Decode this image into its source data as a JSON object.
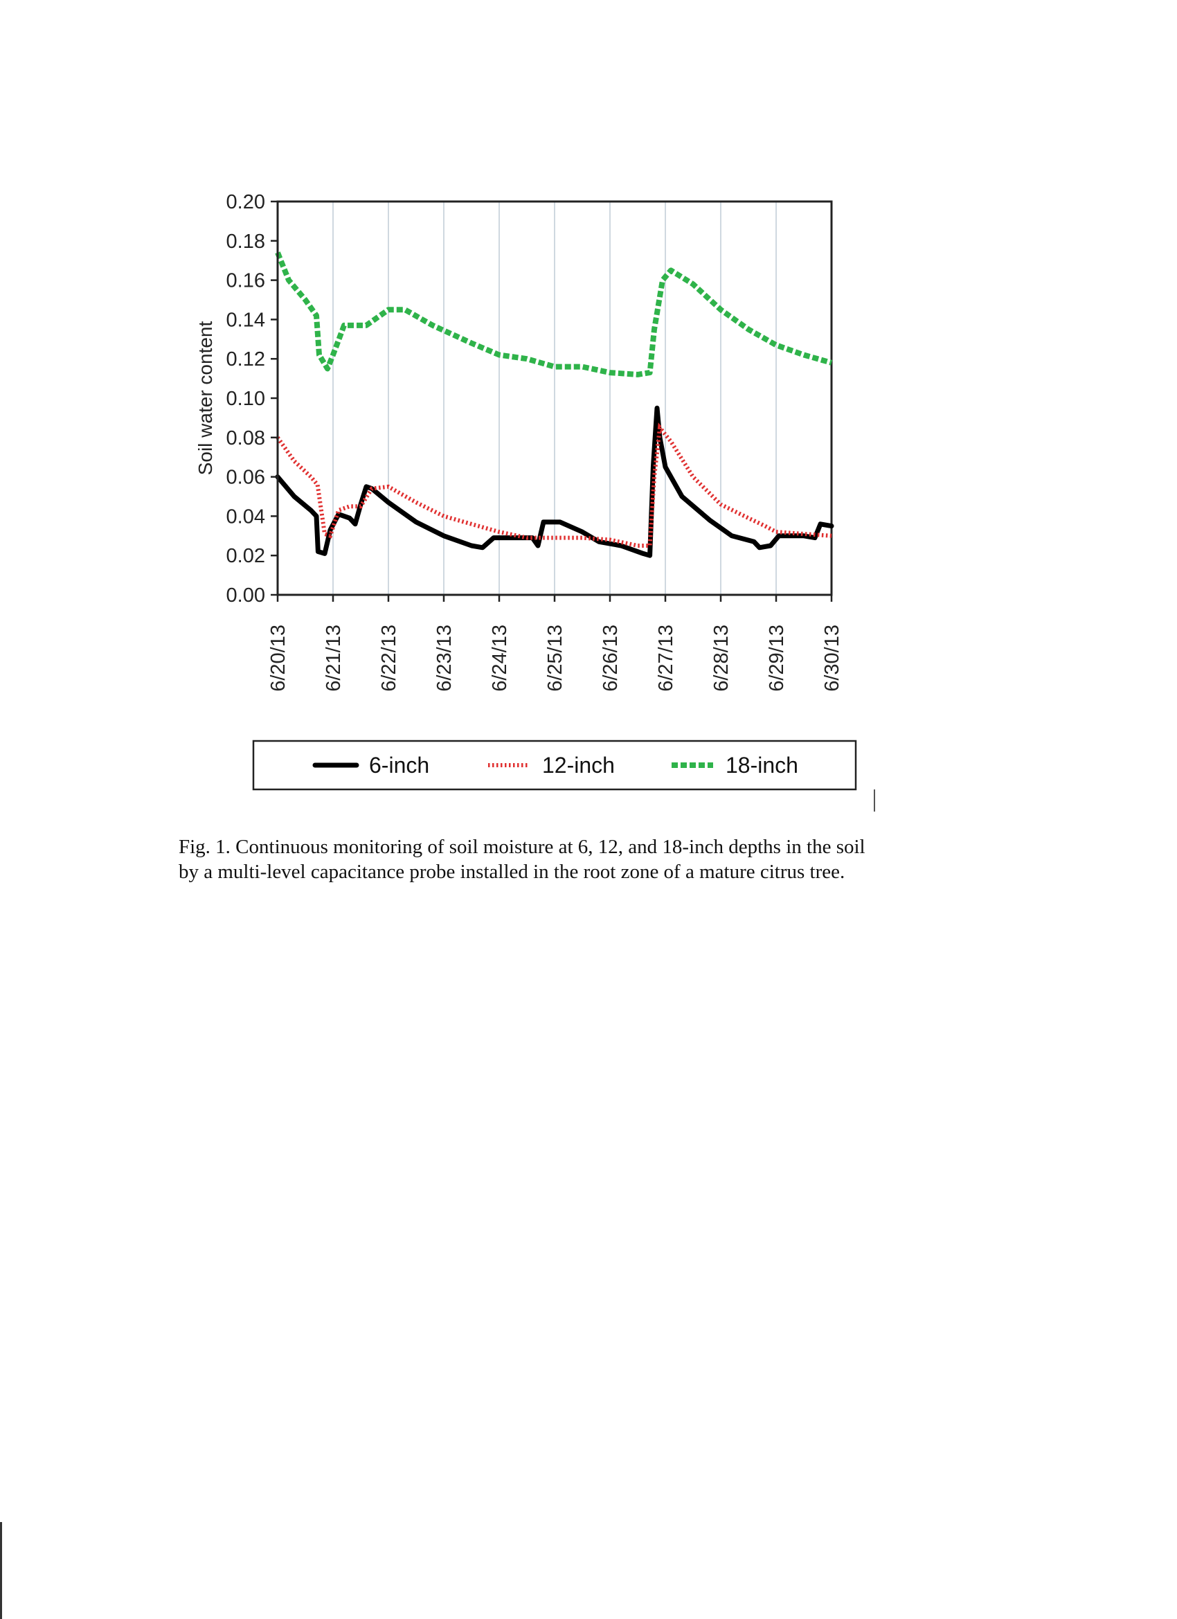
{
  "chart_data": {
    "type": "line",
    "title": "",
    "xlabel": "",
    "ylabel": "Soil water content",
    "ylim": [
      0,
      0.2
    ],
    "yticks": [
      "0.00",
      "0.02",
      "0.04",
      "0.06",
      "0.08",
      "0.10",
      "0.12",
      "0.14",
      "0.16",
      "0.18",
      "0.20"
    ],
    "xlim": [
      0,
      10
    ],
    "x_tick_labels": [
      "6/20/13",
      "6/21/13",
      "6/22/13",
      "6/23/13",
      "6/24/13",
      "6/25/13",
      "6/26/13",
      "6/27/13",
      "6/28/13",
      "6/29/13",
      "6/30/13"
    ],
    "vertical_grid": true,
    "legend_position": "bottom",
    "series": [
      {
        "name": "6-inch",
        "color": "#000000",
        "style": "solid",
        "points": [
          [
            0,
            0.06
          ],
          [
            0.3,
            0.05
          ],
          [
            0.6,
            0.043
          ],
          [
            0.7,
            0.04
          ],
          [
            0.73,
            0.022
          ],
          [
            0.85,
            0.021
          ],
          [
            0.95,
            0.033
          ],
          [
            1.1,
            0.041
          ],
          [
            1.3,
            0.039
          ],
          [
            1.4,
            0.036
          ],
          [
            1.5,
            0.046
          ],
          [
            1.6,
            0.055
          ],
          [
            1.7,
            0.054
          ],
          [
            2.0,
            0.047
          ],
          [
            2.5,
            0.037
          ],
          [
            3.0,
            0.03
          ],
          [
            3.5,
            0.025
          ],
          [
            3.7,
            0.024
          ],
          [
            3.9,
            0.029
          ],
          [
            4.3,
            0.029
          ],
          [
            4.6,
            0.029
          ],
          [
            4.7,
            0.025
          ],
          [
            4.8,
            0.037
          ],
          [
            5.1,
            0.037
          ],
          [
            5.5,
            0.032
          ],
          [
            5.8,
            0.027
          ],
          [
            6.2,
            0.025
          ],
          [
            6.6,
            0.021
          ],
          [
            6.72,
            0.02
          ],
          [
            6.78,
            0.065
          ],
          [
            6.85,
            0.095
          ],
          [
            6.9,
            0.08
          ],
          [
            7.0,
            0.065
          ],
          [
            7.3,
            0.05
          ],
          [
            7.8,
            0.038
          ],
          [
            8.2,
            0.03
          ],
          [
            8.6,
            0.027
          ],
          [
            8.7,
            0.024
          ],
          [
            8.9,
            0.025
          ],
          [
            9.05,
            0.03
          ],
          [
            9.5,
            0.03
          ],
          [
            9.7,
            0.029
          ],
          [
            9.8,
            0.036
          ],
          [
            10.0,
            0.035
          ]
        ]
      },
      {
        "name": "12-inch",
        "color": "#e03030",
        "style": "dotted",
        "points": [
          [
            0,
            0.08
          ],
          [
            0.3,
            0.068
          ],
          [
            0.6,
            0.06
          ],
          [
            0.72,
            0.056
          ],
          [
            0.85,
            0.031
          ],
          [
            0.95,
            0.03
          ],
          [
            1.1,
            0.043
          ],
          [
            1.3,
            0.045
          ],
          [
            1.5,
            0.045
          ],
          [
            1.7,
            0.054
          ],
          [
            2.0,
            0.055
          ],
          [
            2.5,
            0.047
          ],
          [
            3.0,
            0.04
          ],
          [
            3.5,
            0.036
          ],
          [
            4.0,
            0.032
          ],
          [
            4.5,
            0.029
          ],
          [
            5.0,
            0.029
          ],
          [
            5.5,
            0.029
          ],
          [
            6.0,
            0.028
          ],
          [
            6.5,
            0.025
          ],
          [
            6.72,
            0.025
          ],
          [
            6.8,
            0.06
          ],
          [
            6.9,
            0.085
          ],
          [
            7.1,
            0.078
          ],
          [
            7.5,
            0.06
          ],
          [
            8.0,
            0.046
          ],
          [
            8.5,
            0.039
          ],
          [
            8.8,
            0.035
          ],
          [
            9.0,
            0.032
          ],
          [
            9.5,
            0.031
          ],
          [
            10.0,
            0.03
          ]
        ]
      },
      {
        "name": "18-inch",
        "color": "#2fb34a",
        "style": "dashed",
        "points": [
          [
            0,
            0.174
          ],
          [
            0.2,
            0.16
          ],
          [
            0.5,
            0.15
          ],
          [
            0.7,
            0.142
          ],
          [
            0.75,
            0.122
          ],
          [
            0.9,
            0.115
          ],
          [
            1.0,
            0.122
          ],
          [
            1.2,
            0.137
          ],
          [
            1.6,
            0.137
          ],
          [
            2.0,
            0.145
          ],
          [
            2.3,
            0.145
          ],
          [
            2.8,
            0.137
          ],
          [
            3.5,
            0.128
          ],
          [
            4.0,
            0.122
          ],
          [
            4.5,
            0.12
          ],
          [
            5.0,
            0.116
          ],
          [
            5.5,
            0.116
          ],
          [
            6.0,
            0.113
          ],
          [
            6.5,
            0.112
          ],
          [
            6.72,
            0.113
          ],
          [
            6.8,
            0.135
          ],
          [
            6.95,
            0.16
          ],
          [
            7.1,
            0.165
          ],
          [
            7.5,
            0.158
          ],
          [
            8.0,
            0.145
          ],
          [
            8.5,
            0.135
          ],
          [
            9.0,
            0.127
          ],
          [
            9.5,
            0.122
          ],
          [
            10.0,
            0.118
          ]
        ]
      }
    ]
  },
  "caption": "Fig. 1. Continuous monitoring of soil moisture at 6, 12, and 18-inch depths in the soil by a multi-level capacitance probe installed in the root zone of a mature citrus tree."
}
